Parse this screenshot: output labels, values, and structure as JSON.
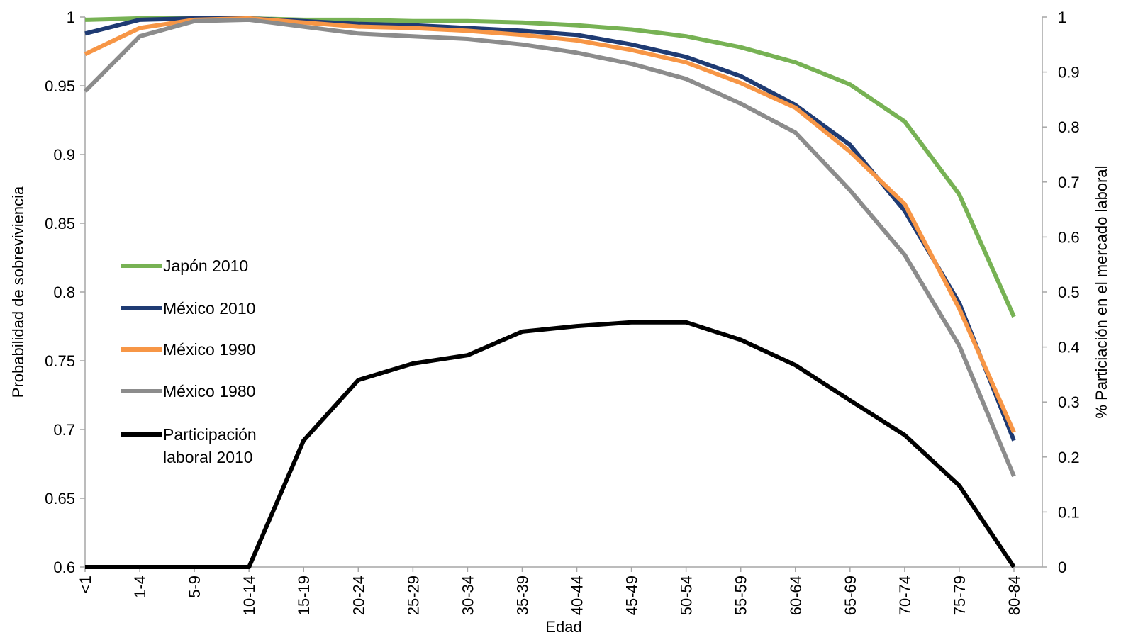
{
  "chart_data": {
    "type": "line",
    "xlabel": "Edad",
    "ylabel": "Probabilidad de sobreviviencia",
    "y2label": "% Particiación en el mercado laboral",
    "categories": [
      "<1",
      "1-4",
      "5-9",
      "10-14",
      "15-19",
      "20-24",
      "25-29",
      "30-34",
      "35-39",
      "40-44",
      "45-49",
      "50-54",
      "55-59",
      "60-64",
      "65-69",
      "70-74",
      "75-79",
      "80-84"
    ],
    "ylim": [
      0.6,
      1
    ],
    "yticks": [
      "0.6",
      "0.65",
      "0.7",
      "0.75",
      "0.8",
      "0.85",
      "0.9",
      "0.95",
      "1"
    ],
    "y2lim": [
      0,
      1
    ],
    "y2ticks": [
      "0",
      "0.1",
      "0.2",
      "0.3",
      "0.4",
      "0.5",
      "0.6",
      "0.7",
      "0.8",
      "0.9",
      "1"
    ],
    "grid": false,
    "legend_position": "left-middle",
    "series": [
      {
        "name": "Japón 2010",
        "axis": "left",
        "color": "#77b254",
        "values": [
          0.998,
          0.999,
          0.999,
          0.999,
          0.998,
          0.998,
          0.997,
          0.997,
          0.996,
          0.994,
          0.991,
          0.986,
          0.978,
          0.967,
          0.951,
          0.924,
          0.871,
          0.782
        ]
      },
      {
        "name": "México 2010",
        "axis": "left",
        "color": "#1f3b73",
        "values": [
          0.988,
          0.998,
          0.999,
          0.999,
          0.997,
          0.995,
          0.994,
          0.992,
          0.99,
          0.987,
          0.98,
          0.971,
          0.957,
          0.936,
          0.907,
          0.859,
          0.792,
          0.692
        ]
      },
      {
        "name": "México 1990",
        "axis": "left",
        "color": "#f79646",
        "values": [
          0.973,
          0.992,
          0.998,
          0.999,
          0.996,
          0.993,
          0.992,
          0.99,
          0.987,
          0.983,
          0.976,
          0.967,
          0.952,
          0.934,
          0.902,
          0.864,
          0.788,
          0.698
        ]
      },
      {
        "name": "México 1980",
        "axis": "left",
        "color": "#8c8c8c",
        "values": [
          0.946,
          0.986,
          0.997,
          0.998,
          0.993,
          0.988,
          0.986,
          0.984,
          0.98,
          0.974,
          0.966,
          0.955,
          0.937,
          0.916,
          0.874,
          0.827,
          0.761,
          0.666
        ]
      },
      {
        "name": "Participación laboral 2010",
        "axis": "right",
        "color": "#000000",
        "values": [
          0,
          0,
          0,
          0,
          0.23,
          0.34,
          0.37,
          0.385,
          0.428,
          0.438,
          0.445,
          0.445,
          0.413,
          0.367,
          0.303,
          0.24,
          0.148,
          0
        ]
      }
    ]
  }
}
